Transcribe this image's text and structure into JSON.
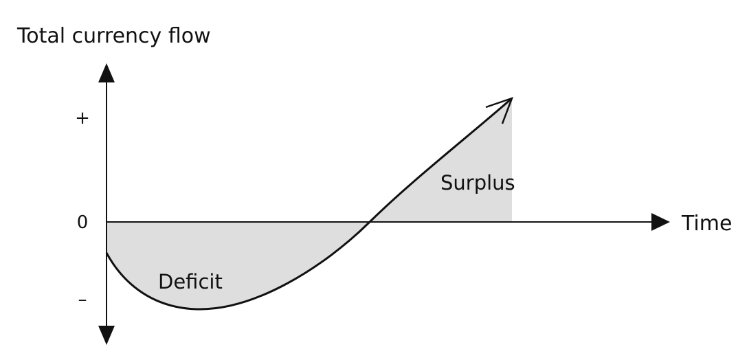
{
  "diagram": {
    "y_axis_label": "Total currency flow",
    "x_axis_label": "Time",
    "y_ticks": {
      "plus": "+",
      "zero": "0",
      "minus": "–"
    },
    "regions": {
      "deficit": "Deficit",
      "surplus": "Surplus"
    }
  },
  "colors": {
    "line": "#111111",
    "shade": "#dededf",
    "background": "#ffffff"
  }
}
